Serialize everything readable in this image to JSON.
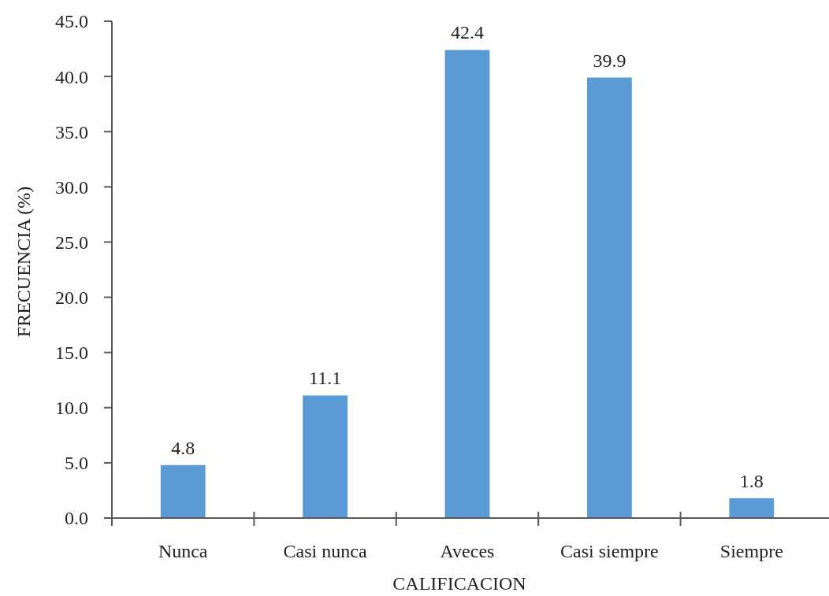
{
  "chart_data": {
    "type": "bar",
    "xlabel": "CALIFICACION",
    "ylabel": "FRECUENCIA (%)",
    "categories": [
      "Nunca",
      "Casi nunca",
      "Aveces",
      "Casi siempre",
      "Siempre"
    ],
    "values": [
      4.8,
      11.1,
      42.4,
      39.9,
      1.8
    ],
    "color": "#5b9bd5",
    "ylim": [
      0,
      45
    ],
    "yticks": [
      {
        "value": 0,
        "label": "0.0"
      },
      {
        "value": 5,
        "label": "5.0"
      },
      {
        "value": 10,
        "label": "10.0"
      },
      {
        "value": 15,
        "label": "15.0"
      },
      {
        "value": 20,
        "label": "20.0"
      },
      {
        "value": 25,
        "label": "25.0"
      },
      {
        "value": 30,
        "label": "30.0"
      },
      {
        "value": 35,
        "label": "35.0"
      },
      {
        "value": 40,
        "label": "40.0"
      },
      {
        "value": 45,
        "label": "45.0"
      }
    ],
    "data_labels": true
  }
}
